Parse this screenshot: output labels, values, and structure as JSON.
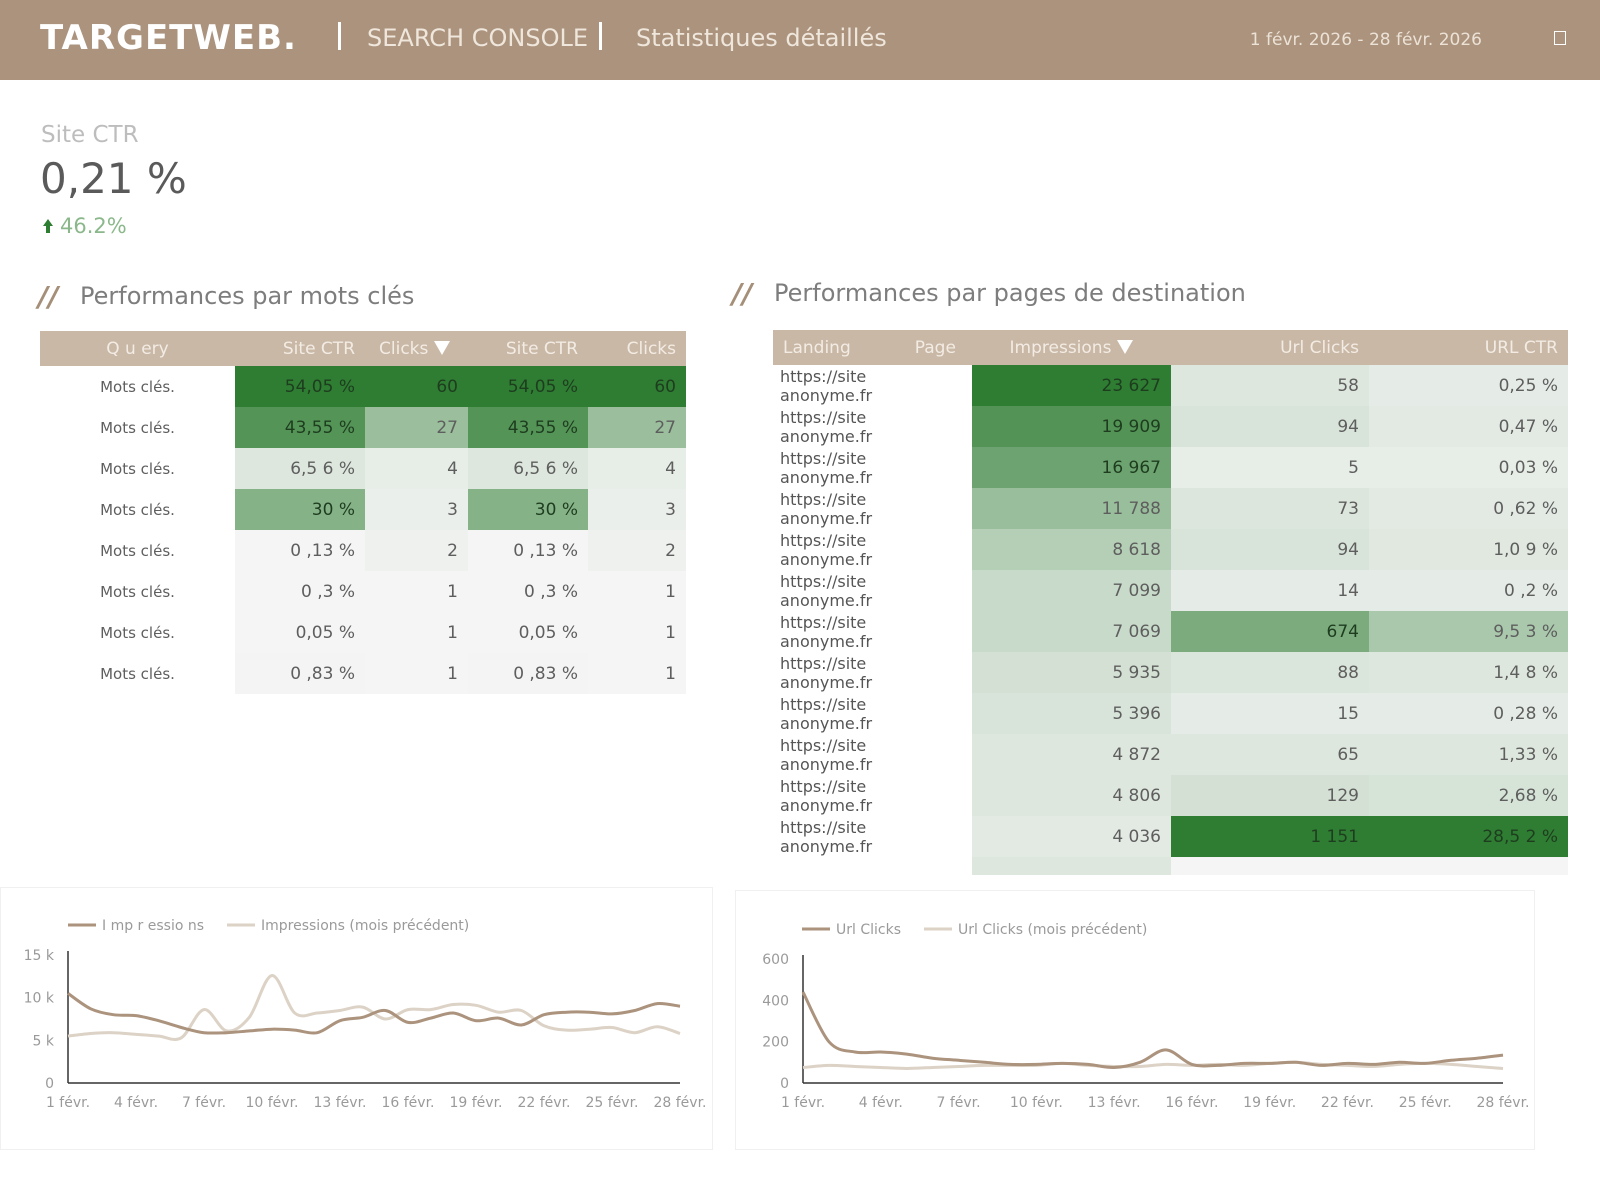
{
  "header": {
    "logo": "TARGETWEB.",
    "product": "SEARCH CONSOLE",
    "page": "Statistiques détaillés",
    "date_range": "1 févr. 2026 - 28 févr. 2026",
    "menu_icon": "square-icon"
  },
  "kpi": {
    "label": "Site CTR",
    "value": "0,21 %",
    "delta": "46.2%",
    "delta_icon": "arrow-up-icon",
    "delta_color": "#2e7d32"
  },
  "keywords": {
    "title": "Performances par mots clés",
    "columns": [
      "Q u ery",
      "Site CTR",
      "Clicks",
      "Site CTR",
      "Clicks"
    ],
    "rows": [
      [
        "Mots clés.",
        "54,05 %",
        "60",
        "54,05 %",
        "60"
      ],
      [
        "Mots clés.",
        "43,55 %",
        "27",
        "43,55 %",
        "27"
      ],
      [
        "Mots clés.",
        "6,5 6 %",
        "4",
        "6,5 6 %",
        "4"
      ],
      [
        "Mots clés.",
        "30 %",
        "3",
        "30 %",
        "3"
      ],
      [
        "Mots clés.",
        "0 ,13 %",
        "2",
        "0 ,13 %",
        "2"
      ],
      [
        "Mots clés.",
        "0 ,3 %",
        "1",
        "0 ,3 %",
        "1"
      ],
      [
        "Mots clés.",
        "0,05 %",
        "1",
        "0,05 %",
        "1"
      ],
      [
        "Mots clés.",
        "0 ,83 %",
        "1",
        "0 ,83 %",
        "1"
      ]
    ],
    "ctr_level": [
      1.0,
      0.81,
      0.12,
      0.56,
      0.0,
      0.0,
      0.0,
      0.01
    ],
    "clicks_level": [
      1.0,
      0.45,
      0.07,
      0.05,
      0.03,
      0.0,
      0.0,
      0.0
    ]
  },
  "pages": {
    "title": "Performances par pages de destination",
    "columns": [
      "Landing",
      "Page",
      "Impressions",
      "Url Clicks",
      "URL CTR"
    ],
    "rows": [
      [
        "https://site anonyme.fr",
        "23 627",
        "58",
        "0,25 %"
      ],
      [
        "https://site anonyme.fr",
        "19 909",
        "94",
        "0,47 %"
      ],
      [
        "https://site anonyme.fr",
        "16 967",
        "5",
        "0,03 %"
      ],
      [
        "https://site anonyme.fr",
        "11 788",
        "73",
        "0 ,62 %"
      ],
      [
        "https://site anonyme.fr",
        "8 618",
        "94",
        "1,0 9 %"
      ],
      [
        "https://site anonyme.fr",
        "7 099",
        "14",
        "0 ,2 %"
      ],
      [
        "https://site anonyme.fr",
        "7 069",
        "674",
        "9,5 3 %"
      ],
      [
        "https://site anonyme.fr",
        "5 935",
        "88",
        "1,4 8 %"
      ],
      [
        "https://site anonyme.fr",
        "5 396",
        "15",
        "0 ,28 %"
      ],
      [
        "https://site anonyme.fr",
        "4 872",
        "65",
        "1,33 %"
      ],
      [
        "https://site anonyme.fr",
        "4 806",
        "129",
        "2,68 %"
      ],
      [
        "https://site anonyme.fr",
        "4 036",
        "1 151",
        "28,5 2 %"
      ]
    ],
    "impr_level": [
      1.0,
      0.8,
      0.66,
      0.42,
      0.27,
      0.17,
      0.17,
      0.11,
      0.08,
      0.05,
      0.05,
      0.02
    ],
    "clicks_level": [
      0.05,
      0.08,
      0.0,
      0.06,
      0.08,
      0.01,
      0.58,
      0.07,
      0.01,
      0.05,
      0.11,
      1.0
    ],
    "ctr_level": [
      0.01,
      0.02,
      0.0,
      0.02,
      0.04,
      0.01,
      0.33,
      0.05,
      0.01,
      0.05,
      0.09,
      1.0
    ]
  },
  "colors": {
    "header_bg": "#ab937d",
    "green_dark": "#2e7d32",
    "green_light": "#f5f5f5",
    "line_current": "#ab937d",
    "line_previous": "#dcd2c6"
  },
  "chart_data": [
    {
      "type": "line",
      "x": [
        "1 févr.",
        "2 févr.",
        "3 févr.",
        "4 févr.",
        "5 févr.",
        "6 févr.",
        "7 févr.",
        "8 févr.",
        "9 févr.",
        "10 févr.",
        "11 févr.",
        "12 févr.",
        "13 févr.",
        "14 févr.",
        "15 févr.",
        "16 févr.",
        "17 févr.",
        "18 févr.",
        "19 févr.",
        "20 févr.",
        "21 févr.",
        "22 févr.",
        "23 févr.",
        "24 févr.",
        "25 févr.",
        "26 févr.",
        "27 févr.",
        "28 févr."
      ],
      "xticks": [
        "1 févr.",
        "4 févr.",
        "7 févr.",
        "10 févr.",
        "13 févr.",
        "16 févr.",
        "19 févr.",
        "22 févr.",
        "25 févr.",
        "28 févr."
      ],
      "yticks": [
        "0",
        "5 k",
        "10 k",
        "15 k"
      ],
      "ylim": [
        0,
        15000
      ],
      "series": [
        {
          "name": "I mp r essio ns",
          "values": [
            10500,
            8700,
            8000,
            7900,
            7300,
            6500,
            5900,
            5900,
            6100,
            6300,
            6200,
            5900,
            7300,
            7700,
            8500,
            7100,
            7600,
            8200,
            7300,
            7600,
            6800,
            8000,
            8300,
            8300,
            8100,
            8500,
            9300,
            9000
          ]
        },
        {
          "name": "Impressions (mois précédent)",
          "values": [
            5500,
            5800,
            5900,
            5700,
            5500,
            5300,
            8600,
            6100,
            7700,
            12600,
            8200,
            8200,
            8500,
            8900,
            7500,
            8600,
            8600,
            9200,
            9100,
            8300,
            8500,
            6700,
            6200,
            6300,
            6500,
            5900,
            6600,
            5800
          ]
        }
      ]
    },
    {
      "type": "line",
      "x": [
        "1 févr.",
        "2 févr.",
        "3 févr.",
        "4 févr.",
        "5 févr.",
        "6 févr.",
        "7 févr.",
        "8 févr.",
        "9 févr.",
        "10 févr.",
        "11 févr.",
        "12 févr.",
        "13 févr.",
        "14 févr.",
        "15 févr.",
        "16 févr.",
        "17 févr.",
        "18 févr.",
        "19 févr.",
        "20 févr.",
        "21 févr.",
        "22 févr.",
        "23 févr.",
        "24 févr.",
        "25 févr.",
        "26 févr.",
        "27 févr.",
        "28 févr."
      ],
      "xticks": [
        "1 févr.",
        "4 févr.",
        "7 févr.",
        "10 févr.",
        "13 févr.",
        "16 févr.",
        "19 févr.",
        "22 févr.",
        "25 févr.",
        "28 févr."
      ],
      "yticks": [
        "0",
        "200",
        "400",
        "600"
      ],
      "ylim": [
        0,
        600
      ],
      "series": [
        {
          "name": "Url Clicks",
          "values": [
            440,
            200,
            150,
            150,
            140,
            120,
            110,
            100,
            90,
            90,
            95,
            90,
            75,
            100,
            160,
            90,
            85,
            95,
            95,
            100,
            85,
            95,
            90,
            100,
            95,
            110,
            120,
            135
          ]
        },
        {
          "name": "Url Clicks (mois précédent)",
          "values": [
            75,
            85,
            80,
            75,
            70,
            75,
            80,
            85,
            85,
            85,
            95,
            85,
            80,
            80,
            90,
            85,
            90,
            85,
            95,
            100,
            90,
            85,
            80,
            90,
            95,
            90,
            80,
            70
          ]
        }
      ]
    }
  ]
}
